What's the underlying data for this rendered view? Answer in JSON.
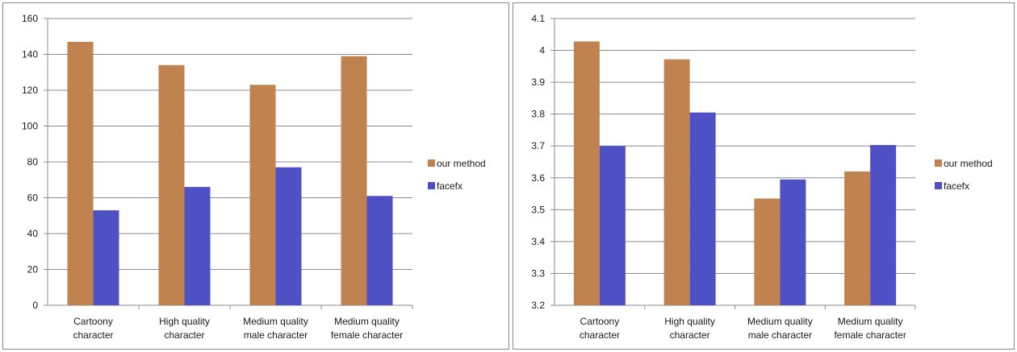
{
  "chart_data": [
    {
      "type": "bar",
      "categories": [
        [
          "Cartoony",
          "character"
        ],
        [
          "High quality",
          "character"
        ],
        [
          "Medium quality",
          "male character"
        ],
        [
          "Medium quality",
          "female character"
        ]
      ],
      "series": [
        {
          "name": "our method",
          "color": "#c0834f",
          "values": [
            147,
            134,
            123,
            139
          ]
        },
        {
          "name": "facefx",
          "color": "#4f50c4",
          "values": [
            53,
            66,
            77,
            61
          ]
        }
      ],
      "yticks": [
        "0",
        "20",
        "40",
        "60",
        "80",
        "100",
        "120",
        "140",
        "160"
      ],
      "ylim": [
        0,
        160
      ],
      "grid": true,
      "legend": "right"
    },
    {
      "type": "bar",
      "categories": [
        [
          "Cartoony",
          "character"
        ],
        [
          "High quality",
          "character"
        ],
        [
          "Medium quality",
          "male character"
        ],
        [
          "Medium quality",
          "female character"
        ]
      ],
      "series": [
        {
          "name": "our method",
          "color": "#c0834f",
          "values": [
            4.028,
            3.972,
            3.535,
            3.62
          ]
        },
        {
          "name": "facefx",
          "color": "#4f50c4",
          "values": [
            3.7,
            3.805,
            3.595,
            3.703
          ]
        }
      ],
      "yticks": [
        "3.2",
        "3.3",
        "3.4",
        "3.5",
        "3.6",
        "3.7",
        "3.8",
        "3.9",
        "4",
        "4.1"
      ],
      "ylim": [
        3.2,
        4.1
      ],
      "grid": true,
      "legend": "right"
    }
  ]
}
